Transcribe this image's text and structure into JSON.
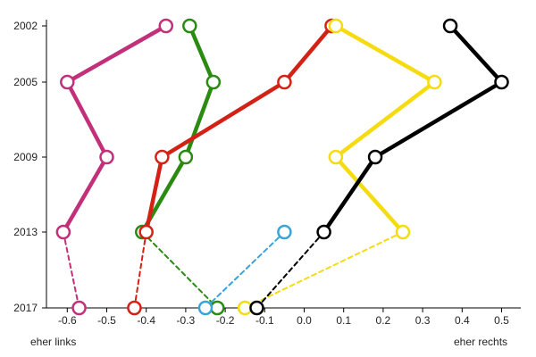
{
  "chart_data": {
    "type": "line",
    "title": "",
    "xlabel_left": "eher links",
    "xlabel_right": "eher rechts",
    "xlim": [
      -0.68,
      0.52
    ],
    "xticks": [
      -0.6,
      -0.5,
      -0.4,
      -0.3,
      -0.2,
      -0.1,
      0.0,
      0.1,
      0.2,
      0.3,
      0.4,
      0.5
    ],
    "xtick_labels": [
      "-0.6",
      "-0.5",
      "-0.4",
      "-0.3",
      "-0.2",
      "-0.1",
      "0.0",
      "0.1",
      "0.2",
      "0.3",
      "0.4",
      "0.5"
    ],
    "years": [
      2002,
      2005,
      2009,
      2013,
      2017
    ],
    "ytick_labels": [
      "2002",
      "2005",
      "2009",
      "2013",
      "2017"
    ],
    "grid": false,
    "legend": "none",
    "series": [
      {
        "color": "#c2307a",
        "points": [
          {
            "year": 2002,
            "x": -0.35
          },
          {
            "year": 2005,
            "x": -0.6
          },
          {
            "year": 2009,
            "x": -0.5
          },
          {
            "year": 2013,
            "x": -0.61
          },
          {
            "year": 2017,
            "x": -0.57
          }
        ]
      },
      {
        "color": "#2a8a12",
        "points": [
          {
            "year": 2002,
            "x": -0.29
          },
          {
            "year": 2005,
            "x": -0.23
          },
          {
            "year": 2009,
            "x": -0.3
          },
          {
            "year": 2013,
            "x": -0.41
          },
          {
            "year": 2017,
            "x": -0.22
          }
        ]
      },
      {
        "color": "#d42116",
        "points": [
          {
            "year": 2002,
            "x": 0.07
          },
          {
            "year": 2005,
            "x": -0.05
          },
          {
            "year": 2009,
            "x": -0.36
          },
          {
            "year": 2013,
            "x": -0.4
          },
          {
            "year": 2017,
            "x": -0.43
          }
        ]
      },
      {
        "color": "#f5dc10",
        "points": [
          {
            "year": 2002,
            "x": 0.08
          },
          {
            "year": 2005,
            "x": 0.33
          },
          {
            "year": 2009,
            "x": 0.08
          },
          {
            "year": 2013,
            "x": 0.25
          },
          {
            "year": 2017,
            "x": -0.15
          }
        ]
      },
      {
        "color": "#000000",
        "points": [
          {
            "year": 2002,
            "x": 0.37
          },
          {
            "year": 2005,
            "x": 0.5
          },
          {
            "year": 2009,
            "x": 0.18
          },
          {
            "year": 2013,
            "x": 0.05
          },
          {
            "year": 2017,
            "x": -0.12
          }
        ]
      },
      {
        "color": "#3aa3d8",
        "points": [
          {
            "year": 2013,
            "x": -0.05
          },
          {
            "year": 2017,
            "x": -0.25
          }
        ]
      }
    ]
  }
}
